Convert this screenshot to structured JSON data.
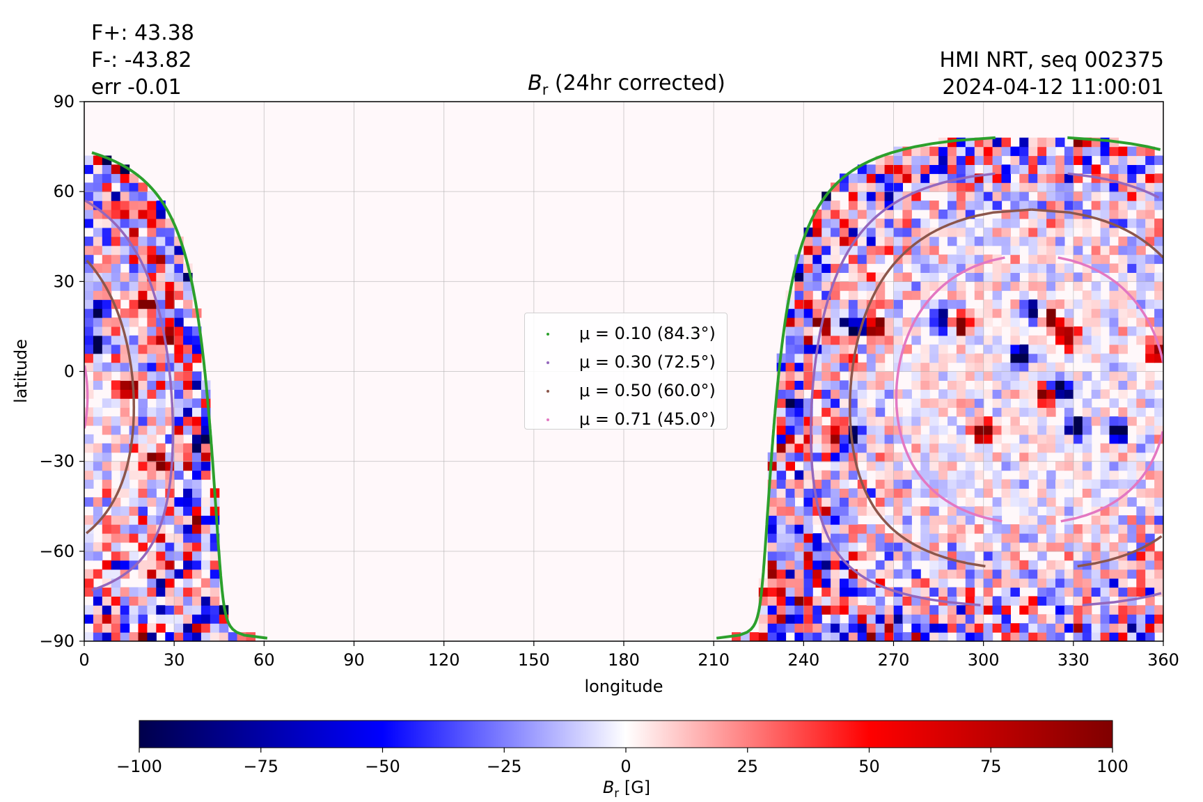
{
  "header": {
    "flux_plus": "F+: 43.38",
    "flux_minus": "F-: -43.82",
    "err": "err -0.01",
    "source": "HMI NRT, seq 002375",
    "timestamp": "2024-04-12 11:00:01"
  },
  "title": {
    "symbol": "B",
    "subscript": "r",
    "text": " (24hr corrected)"
  },
  "colorbar_label": {
    "symbol": "B",
    "subscript": "r",
    "unit": " [G]"
  },
  "chart_data": {
    "type": "heatmap",
    "title": "B_r (24hr corrected)",
    "xlabel": "longitude",
    "ylabel": "latitude",
    "xlim": [
      0,
      360
    ],
    "ylim": [
      -90,
      90
    ],
    "grid": true,
    "x_ticks": [
      "0",
      "30",
      "60",
      "90",
      "120",
      "150",
      "180",
      "210",
      "240",
      "270",
      "300",
      "330",
      "360"
    ],
    "y_ticks": [
      "−90",
      "−60",
      "−30",
      "0",
      "30",
      "60",
      "90"
    ],
    "colormap": "seismic",
    "colorbar": {
      "label": "B_r [G]",
      "range": [
        -100,
        100
      ],
      "ticks": [
        "−100",
        "−75",
        "−50",
        "−25",
        "0",
        "25",
        "50",
        "75",
        "100"
      ],
      "colors": [
        "#00004c",
        "#0000ff",
        "#ffffff",
        "#ff0000",
        "#800000"
      ]
    },
    "disk_center_longitude": 316,
    "disk_center_latitude": -6,
    "legend_placement": "center",
    "series": [
      {
        "label": "μ = 0.10 (84.3°)",
        "mu": 0.1,
        "angle_deg": 84.3,
        "color": "#2ca02c"
      },
      {
        "label": "μ = 0.30 (72.5°)",
        "mu": 0.3,
        "angle_deg": 72.5,
        "color": "#9467bd"
      },
      {
        "label": "μ = 0.50 (60.0°)",
        "mu": 0.5,
        "angle_deg": 60.0,
        "color": "#8c564b"
      },
      {
        "label": "μ = 0.71 (45.0°)",
        "mu": 0.71,
        "angle_deg": 45.0,
        "color": "#e377c2"
      }
    ],
    "regions": [
      {
        "lon": 317,
        "lat": 20,
        "polarity": "negative"
      },
      {
        "lon": 322,
        "lat": 18,
        "polarity": "positive"
      },
      {
        "lon": 286,
        "lat": 17,
        "polarity": "negative"
      },
      {
        "lon": 292,
        "lat": 16,
        "polarity": "positive"
      },
      {
        "lon": 257,
        "lat": 16,
        "polarity": "negative"
      },
      {
        "lon": 265,
        "lat": 15,
        "polarity": "positive"
      },
      {
        "lon": 246,
        "lat": 16,
        "polarity": "positive"
      },
      {
        "lon": 251,
        "lat": -20,
        "polarity": "positive"
      },
      {
        "lon": 256,
        "lat": -21,
        "polarity": "negative"
      },
      {
        "lon": 236,
        "lat": -10,
        "polarity": "negative"
      },
      {
        "lon": 321,
        "lat": -8,
        "polarity": "positive"
      },
      {
        "lon": 326,
        "lat": -6,
        "polarity": "negative"
      },
      {
        "lon": 331,
        "lat": -18,
        "polarity": "negative"
      },
      {
        "lon": 300,
        "lat": -20,
        "polarity": "positive"
      },
      {
        "lon": 344,
        "lat": -20,
        "polarity": "negative"
      },
      {
        "lon": 358,
        "lat": 7,
        "polarity": "positive"
      },
      {
        "lon": 312,
        "lat": 5,
        "polarity": "negative"
      },
      {
        "lon": 328,
        "lat": 12,
        "polarity": "positive"
      },
      {
        "lon": 20,
        "lat": 23,
        "polarity": "positive"
      },
      {
        "lon": 4,
        "lat": 20,
        "polarity": "negative"
      },
      {
        "lon": 3,
        "lat": 9,
        "polarity": "negative"
      },
      {
        "lon": 40,
        "lat": -22,
        "polarity": "negative"
      },
      {
        "lon": 28,
        "lat": 12,
        "polarity": "positive"
      },
      {
        "lon": 25,
        "lat": -30,
        "polarity": "positive"
      },
      {
        "lon": 14,
        "lat": -5,
        "polarity": "positive"
      }
    ]
  }
}
